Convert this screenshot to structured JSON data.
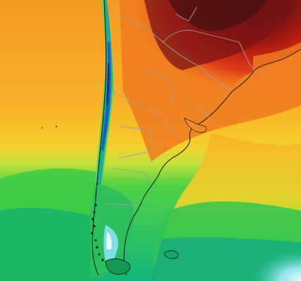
{
  "map": {
    "kind": "temperature-field",
    "region": "southern-south-america",
    "palette": {
      "very_hot": "#4a1010",
      "hot": "#b0160e",
      "warm_red": "#e2321a",
      "orange": "#f17a1e",
      "amber": "#f6a623",
      "yellow": "#f4d42a",
      "lime": "#a9e23b",
      "green": "#36d040",
      "teal": "#19b78b",
      "cyan": "#5fd8e0",
      "ice": "#dff6f7",
      "cold_blue": "#1a5bc4",
      "border": "#9aa0a8",
      "coast": "#1d2a1d"
    },
    "features": [
      "andes-cold-band",
      "subtropical-heat-core",
      "south-atlantic-cool-water",
      "falkland-islands",
      "tierra-del-fuego"
    ]
  }
}
